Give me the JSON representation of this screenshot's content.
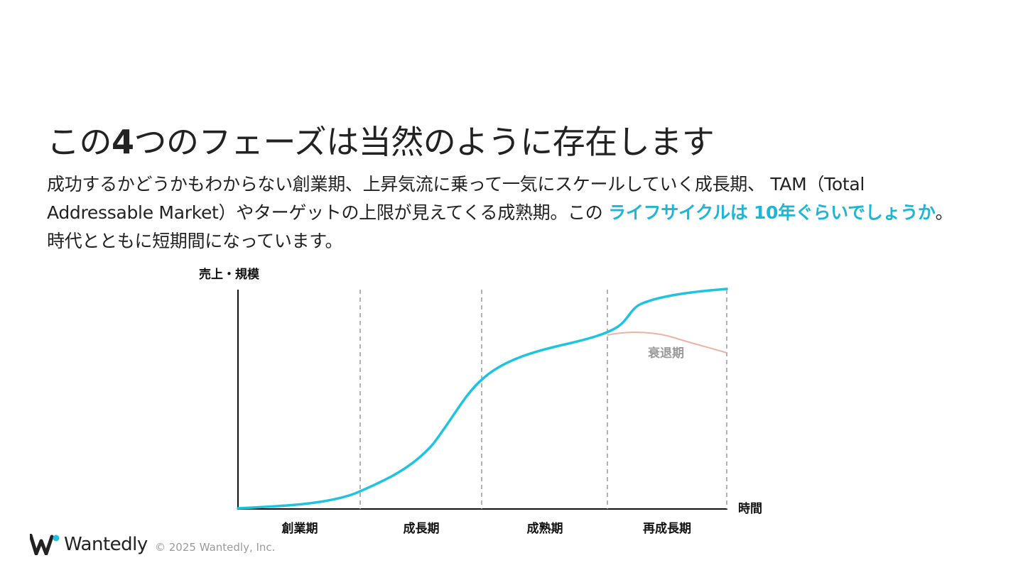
{
  "slide": {
    "title": {
      "prefix": "この",
      "number": "4",
      "suffix": "つのフェーズは当然のように存在します"
    },
    "body": {
      "part1": "成功するかどうかもわからない創業期、上昇気流に乗って一気にスケールしていく成長期、 TAM（Total Addressable Market）やターゲットの上限が見えてくる成熟期。この ",
      "highlight": "ライフサイクルは 10年ぐらいでしょうか",
      "part2": "。時代とともに短期間になっています。"
    }
  },
  "diagram": {
    "y_axis_label": "売上・規模",
    "x_axis_label": "時間",
    "phases": [
      "創業期",
      "成長期",
      "成熟期",
      "再成長期"
    ],
    "decline_label": "衰退期",
    "colors": {
      "growth_curve": "#1fc3e0",
      "decline_curve": "#eab3a8",
      "divider": "#9a9a9a",
      "axis": "#111111",
      "highlight_text": "#1fb5d4"
    }
  },
  "footer": {
    "brand": "Wantedly",
    "logo_icon": "wantedly-logo-icon",
    "copyright": "© 2025 Wantedly, Inc."
  }
}
